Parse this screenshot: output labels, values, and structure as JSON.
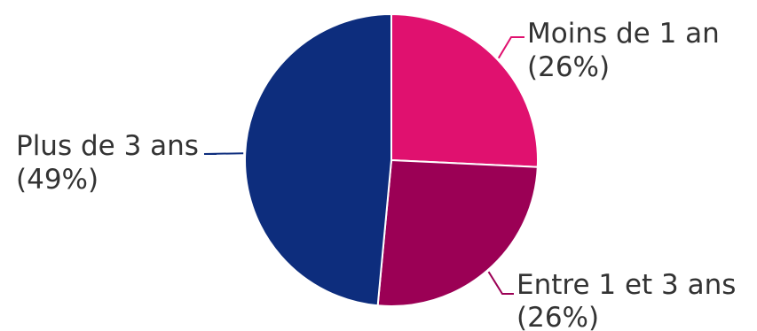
{
  "chart_data": {
    "type": "pie",
    "slices": [
      {
        "label": "Moins de 1 an",
        "pct_label": "(26%)",
        "value": 26,
        "color": "#e0116f"
      },
      {
        "label": "Entre 1 et 3 ans",
        "pct_label": "(26%)",
        "value": 26,
        "color": "#9b0055"
      },
      {
        "label": "Plus de 3 ans",
        "pct_label": "(49%)",
        "value": 49,
        "color": "#0d2d7d"
      }
    ],
    "start_angle": "12 o'clock",
    "direction": "clockwise",
    "legend": "none",
    "data_labels": "outside with leader lines"
  }
}
